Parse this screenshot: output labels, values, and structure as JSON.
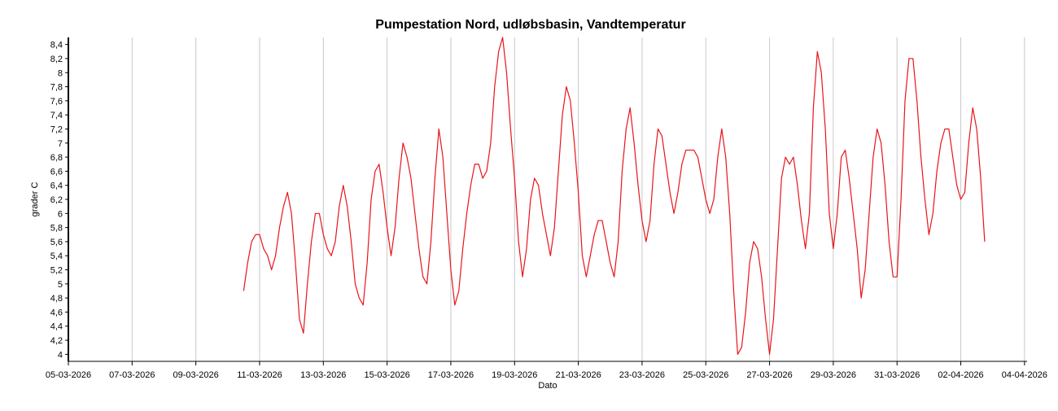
{
  "chart_data": {
    "type": "line",
    "title": "Pumpestation Nord, udløbsbasin, Vandtemperatur",
    "xlabel": "Dato",
    "ylabel": "grader C",
    "color": "#e8141c",
    "grid": "x",
    "xlim": [
      0,
      30.08
    ],
    "ylim": [
      3.9,
      8.5
    ],
    "xticks": [
      {
        "value": 0,
        "label": "05-03-2026"
      },
      {
        "value": 2,
        "label": "07-03-2026"
      },
      {
        "value": 4,
        "label": "09-03-2026"
      },
      {
        "value": 6,
        "label": "11-03-2026"
      },
      {
        "value": 8,
        "label": "13-03-2026"
      },
      {
        "value": 10,
        "label": "15-03-2026"
      },
      {
        "value": 12,
        "label": "17-03-2026"
      },
      {
        "value": 14,
        "label": "19-03-2026"
      },
      {
        "value": 16,
        "label": "21-03-2026"
      },
      {
        "value": 18,
        "label": "23-03-2026"
      },
      {
        "value": 20,
        "label": "25-03-2026"
      },
      {
        "value": 22,
        "label": "27-03-2026"
      },
      {
        "value": 24,
        "label": "29-03-2026"
      },
      {
        "value": 26,
        "label": "31-03-2026"
      },
      {
        "value": 28,
        "label": "02-04-2026"
      },
      {
        "value": 30,
        "label": "04-04-2026"
      }
    ],
    "yticks": [
      4,
      {
        "value": 4.2,
        "label": "4,2"
      },
      {
        "value": 4.4,
        "label": "4,4"
      },
      {
        "value": 4.6,
        "label": "4,6"
      },
      {
        "value": 4.8,
        "label": "4,8"
      },
      5,
      {
        "value": 5.2,
        "label": "5,2"
      },
      {
        "value": 5.4,
        "label": "5,4"
      },
      {
        "value": 5.6,
        "label": "5,6"
      },
      {
        "value": 5.8,
        "label": "5,8"
      },
      6,
      {
        "value": 6.2,
        "label": "6,2"
      },
      {
        "value": 6.4,
        "label": "6,4"
      },
      {
        "value": 6.6,
        "label": "6,6"
      },
      {
        "value": 6.8,
        "label": "6,8"
      },
      7,
      {
        "value": 7.2,
        "label": "7,2"
      },
      {
        "value": 7.4,
        "label": "7,4"
      },
      {
        "value": 7.6,
        "label": "7,6"
      },
      {
        "value": 7.8,
        "label": "7,8"
      },
      8,
      {
        "value": 8.2,
        "label": "8,2"
      },
      {
        "value": 8.4,
        "label": "8,4"
      }
    ],
    "x": [
      5.5,
      5.625,
      5.75,
      5.875,
      6,
      6.125,
      6.25,
      6.375,
      6.5,
      6.625,
      6.75,
      6.875,
      7,
      7.125,
      7.25,
      7.375,
      7.5,
      7.625,
      7.75,
      7.875,
      8,
      8.125,
      8.25,
      8.375,
      8.5,
      8.625,
      8.75,
      8.875,
      9,
      9.125,
      9.25,
      9.375,
      9.5,
      9.625,
      9.75,
      9.875,
      10,
      10.125,
      10.25,
      10.375,
      10.5,
      10.625,
      10.75,
      10.875,
      11,
      11.125,
      11.25,
      11.375,
      11.5,
      11.625,
      11.75,
      11.875,
      12,
      12.125,
      12.25,
      12.375,
      12.5,
      12.625,
      12.75,
      12.875,
      13,
      13.125,
      13.25,
      13.375,
      13.5,
      13.625,
      13.75,
      13.875,
      14,
      14.125,
      14.25,
      14.375,
      14.5,
      14.625,
      14.75,
      14.875,
      15,
      15.125,
      15.25,
      15.375,
      15.5,
      15.625,
      15.75,
      15.875,
      16,
      16.125,
      16.25,
      16.375,
      16.5,
      16.625,
      16.75,
      16.875,
      17,
      17.125,
      17.25,
      17.375,
      17.5,
      17.625,
      17.75,
      17.875,
      18,
      18.125,
      18.25,
      18.375,
      18.5,
      18.625,
      18.75,
      18.875,
      19,
      19.125,
      19.25,
      19.375,
      19.5,
      19.625,
      19.75,
      19.875,
      20,
      20.125,
      20.25,
      20.375,
      20.5,
      20.625,
      20.75,
      20.875,
      21,
      21.125,
      21.25,
      21.375,
      21.5,
      21.625,
      21.75,
      21.875,
      22,
      22.125,
      22.25,
      22.375,
      22.5,
      22.625,
      22.75,
      22.875,
      23,
      23.125,
      23.25,
      23.375,
      23.5,
      23.625,
      23.75,
      23.875,
      24,
      24.125,
      24.25,
      24.375,
      24.5,
      24.625,
      24.75,
      24.875,
      25,
      25.125,
      25.25,
      25.375,
      25.5,
      25.625,
      25.75,
      25.875,
      26,
      26.125,
      26.25,
      26.375,
      26.5,
      26.625,
      26.75,
      26.875,
      27,
      27.125,
      27.25,
      27.375,
      27.5,
      27.625,
      27.75,
      27.875,
      28,
      28.125,
      28.25,
      28.375,
      28.5,
      28.625,
      28.75
    ],
    "values": [
      4.9,
      5.3,
      5.6,
      5.7,
      5.7,
      5.5,
      5.4,
      5.2,
      5.4,
      5.8,
      6.1,
      6.3,
      6.0,
      5.3,
      4.5,
      4.3,
      5.0,
      5.6,
      6.0,
      6.0,
      5.7,
      5.5,
      5.4,
      5.6,
      6.1,
      6.4,
      6.1,
      5.6,
      5.0,
      4.8,
      4.7,
      5.3,
      6.2,
      6.6,
      6.7,
      6.3,
      5.8,
      5.4,
      5.8,
      6.5,
      7.0,
      6.8,
      6.5,
      6.0,
      5.5,
      5.1,
      5.0,
      5.6,
      6.5,
      7.2,
      6.8,
      6.0,
      5.2,
      4.7,
      4.9,
      5.5,
      6.0,
      6.4,
      6.7,
      6.7,
      6.5,
      6.6,
      7.0,
      7.8,
      8.3,
      8.5,
      8.0,
      7.2,
      6.5,
      5.6,
      5.1,
      5.5,
      6.2,
      6.5,
      6.4,
      6.0,
      5.7,
      5.4,
      5.8,
      6.6,
      7.4,
      7.8,
      7.6,
      7.0,
      6.3,
      5.4,
      5.1,
      5.4,
      5.7,
      5.9,
      5.9,
      5.6,
      5.3,
      5.1,
      5.6,
      6.6,
      7.2,
      7.5,
      7.0,
      6.4,
      5.9,
      5.6,
      5.9,
      6.7,
      7.2,
      7.1,
      6.7,
      6.3,
      6.0,
      6.3,
      6.7,
      6.9,
      6.9,
      6.9,
      6.8,
      6.5,
      6.2,
      6.0,
      6.2,
      6.8,
      7.2,
      6.8,
      6.0,
      4.9,
      4.0,
      4.1,
      4.6,
      5.3,
      5.6,
      5.5,
      5.1,
      4.5,
      4.0,
      4.5,
      5.5,
      6.5,
      6.8,
      6.7,
      6.8,
      6.4,
      5.9,
      5.5,
      6.0,
      7.5,
      8.3,
      8.0,
      7.2,
      6.0,
      5.5,
      6.0,
      6.8,
      6.9,
      6.5,
      6.0,
      5.5,
      4.8,
      5.2,
      6.0,
      6.8,
      7.2,
      7.0,
      6.4,
      5.6,
      5.1,
      5.1,
      6.2,
      7.6,
      8.2,
      8.2,
      7.6,
      6.8,
      6.2,
      5.7,
      6.0,
      6.6,
      7.0,
      7.2,
      7.2,
      6.8,
      6.4,
      6.2,
      6.3,
      7.0,
      7.5,
      7.2,
      6.5,
      5.6
    ]
  }
}
